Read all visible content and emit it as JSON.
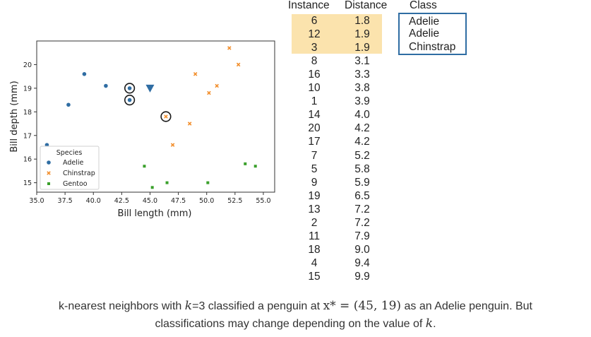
{
  "chart_data": {
    "type": "scatter",
    "xlabel": "Bill length (mm)",
    "ylabel": "Bill depth (mm)",
    "xlim": [
      35.0,
      56.0
    ],
    "ylim": [
      14.6,
      21.0
    ],
    "xticks": [
      "35.0",
      "37.5",
      "40.0",
      "42.5",
      "45.0",
      "47.5",
      "50.0",
      "52.5",
      "55.0"
    ],
    "yticks": [
      "15",
      "16",
      "17",
      "18",
      "19",
      "20"
    ],
    "legend": {
      "title": "Species",
      "placement": "lower-left"
    },
    "series": [
      {
        "name": "Adelie",
        "marker": "circle",
        "color": "#2f6da3",
        "points": [
          [
            39.2,
            19.6
          ],
          [
            41.1,
            19.1
          ],
          [
            43.2,
            19.0
          ],
          [
            43.2,
            18.5
          ],
          [
            37.8,
            18.3
          ],
          [
            35.9,
            16.6
          ]
        ]
      },
      {
        "name": "Chinstrap",
        "marker": "x",
        "color": "#f28e2b",
        "points": [
          [
            52.0,
            20.7
          ],
          [
            52.8,
            20.0
          ],
          [
            49.0,
            19.6
          ],
          [
            50.9,
            19.1
          ],
          [
            50.2,
            18.8
          ],
          [
            46.4,
            17.8
          ],
          [
            48.5,
            17.5
          ],
          [
            47.0,
            16.6
          ]
        ]
      },
      {
        "name": "Gentoo",
        "marker": "square",
        "color": "#3aa02b",
        "points": [
          [
            53.4,
            15.8
          ],
          [
            54.3,
            15.7
          ],
          [
            44.5,
            15.7
          ],
          [
            46.5,
            15.0
          ],
          [
            50.1,
            15.0
          ],
          [
            45.2,
            14.8
          ]
        ]
      }
    ],
    "query": {
      "x": 45,
      "y": 19,
      "marker": "triangle-down",
      "color": "#2f6da3"
    },
    "neighbors": [
      [
        43.2,
        19.0
      ],
      [
        43.2,
        18.5
      ],
      [
        46.4,
        17.8
      ]
    ]
  },
  "table": {
    "headers": {
      "instance": "Instance",
      "distance": "Distance",
      "class": "Class"
    },
    "rows": [
      {
        "instance": "6",
        "distance": "1.8"
      },
      {
        "instance": "12",
        "distance": "1.9"
      },
      {
        "instance": "3",
        "distance": "1.9"
      },
      {
        "instance": "8",
        "distance": "3.1"
      },
      {
        "instance": "16",
        "distance": "3.3"
      },
      {
        "instance": "10",
        "distance": "3.8"
      },
      {
        "instance": "1",
        "distance": "3.9"
      },
      {
        "instance": "14",
        "distance": "4.0"
      },
      {
        "instance": "20",
        "distance": "4.2"
      },
      {
        "instance": "17",
        "distance": "4.2"
      },
      {
        "instance": "7",
        "distance": "5.2"
      },
      {
        "instance": "5",
        "distance": "5.8"
      },
      {
        "instance": "9",
        "distance": "5.9"
      },
      {
        "instance": "19",
        "distance": "6.5"
      },
      {
        "instance": "13",
        "distance": "7.2"
      },
      {
        "instance": "2",
        "distance": "7.2"
      },
      {
        "instance": "11",
        "distance": "7.9"
      },
      {
        "instance": "18",
        "distance": "9.0"
      },
      {
        "instance": "4",
        "distance": "9.4"
      },
      {
        "instance": "15",
        "distance": "9.9"
      }
    ],
    "highlight_count": 3,
    "highlight_color": "#fbe3ad",
    "classes": [
      "Adelie",
      "Adelie",
      "Chinstrap"
    ]
  },
  "caption": {
    "part1": "k-nearest neighbors with ",
    "k1": "k",
    "part2": "=3 classified a penguin at ",
    "point_symbol": "x* = (45, 19)",
    "part3": " as an Adelie penguin. But",
    "part4": "classifications may change depending on the value of ",
    "k2": "k",
    "part5": "."
  }
}
